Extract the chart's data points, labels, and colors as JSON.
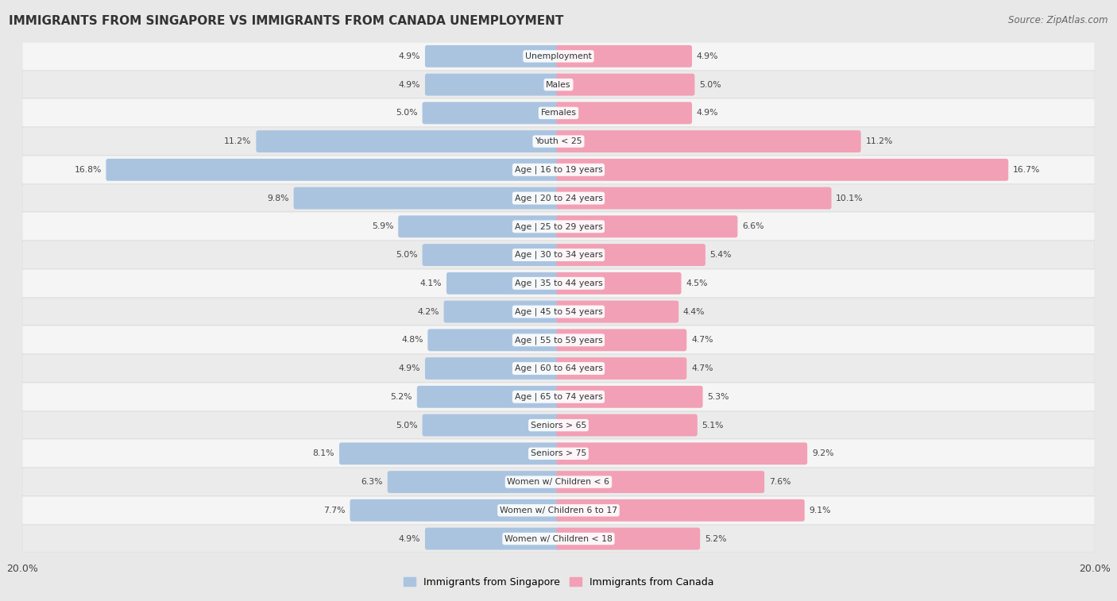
{
  "title": "IMMIGRANTS FROM SINGAPORE VS IMMIGRANTS FROM CANADA UNEMPLOYMENT",
  "source": "Source: ZipAtlas.com",
  "categories": [
    "Unemployment",
    "Males",
    "Females",
    "Youth < 25",
    "Age | 16 to 19 years",
    "Age | 20 to 24 years",
    "Age | 25 to 29 years",
    "Age | 30 to 34 years",
    "Age | 35 to 44 years",
    "Age | 45 to 54 years",
    "Age | 55 to 59 years",
    "Age | 60 to 64 years",
    "Age | 65 to 74 years",
    "Seniors > 65",
    "Seniors > 75",
    "Women w/ Children < 6",
    "Women w/ Children 6 to 17",
    "Women w/ Children < 18"
  ],
  "singapore_values": [
    4.9,
    4.9,
    5.0,
    11.2,
    16.8,
    9.8,
    5.9,
    5.0,
    4.1,
    4.2,
    4.8,
    4.9,
    5.2,
    5.0,
    8.1,
    6.3,
    7.7,
    4.9
  ],
  "canada_values": [
    4.9,
    5.0,
    4.9,
    11.2,
    16.7,
    10.1,
    6.6,
    5.4,
    4.5,
    4.4,
    4.7,
    4.7,
    5.3,
    5.1,
    9.2,
    7.6,
    9.1,
    5.2
  ],
  "singapore_color": "#aac4e0",
  "canada_color": "#f2a0b5",
  "singapore_label": "Immigrants from Singapore",
  "canada_label": "Immigrants from Canada",
  "max_val": 20.0,
  "page_bg": "#e8e8e8",
  "row_bg_odd": "#f5f5f5",
  "row_bg_even": "#ebebeb",
  "title_color": "#333333",
  "source_color": "#666666",
  "value_color": "#444444",
  "label_color": "#333333"
}
